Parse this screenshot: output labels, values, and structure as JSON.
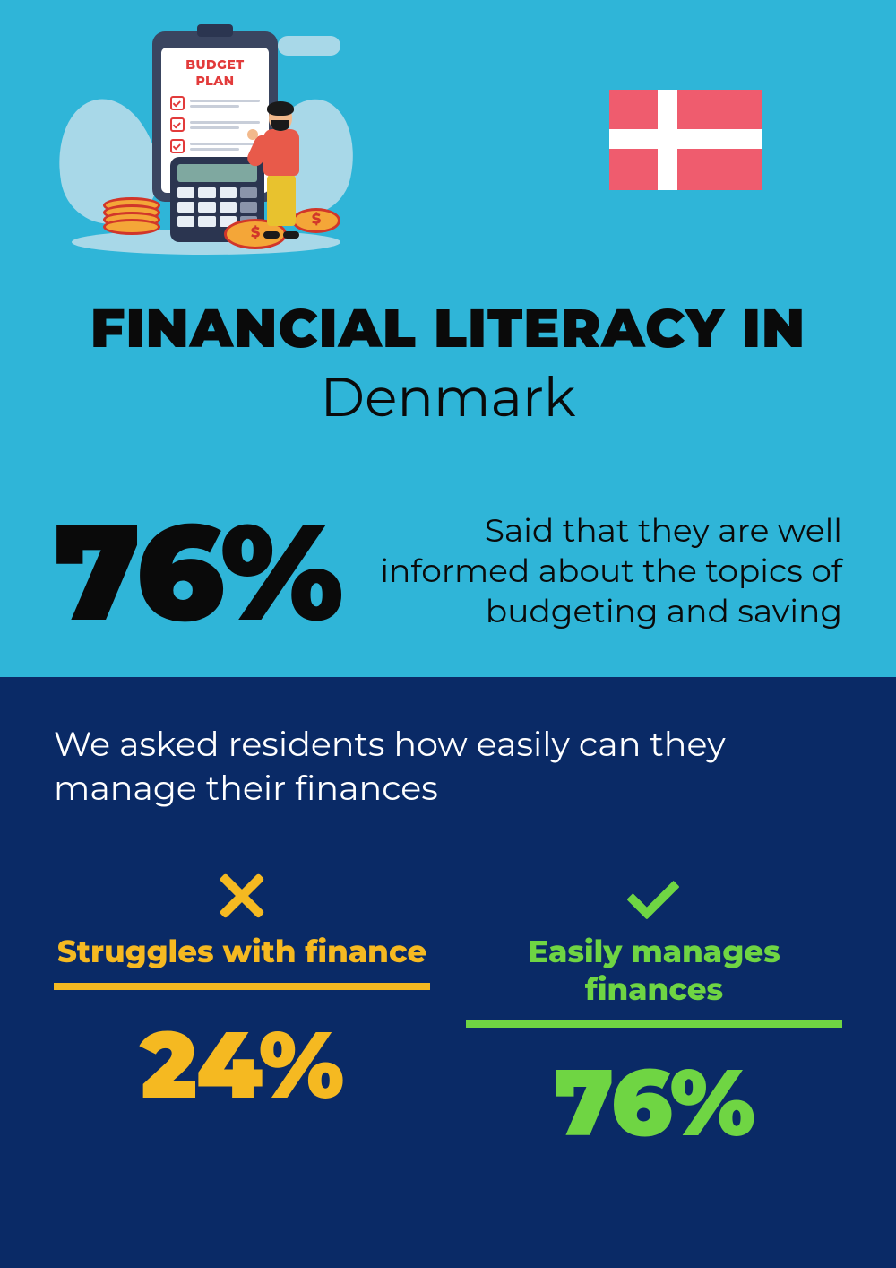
{
  "illustration": {
    "clipboard_label": "BUDGET PLAN"
  },
  "flag": {
    "country": "Denmark",
    "bg_color": "#ef5c6e",
    "cross_color": "#ffffff"
  },
  "title": {
    "line1": "FINANCIAL LITERACY IN",
    "line2": "Denmark",
    "line1_weight": 900,
    "line2_weight": 400,
    "font_size": 60,
    "color": "#0a0a0a"
  },
  "headline_stat": {
    "value": "76%",
    "value_font_size": 150,
    "value_weight": 900,
    "value_color": "#0a0a0a",
    "description": "Said that they are well informed about the topics of budgeting and saving",
    "description_font_size": 36,
    "description_align": "right"
  },
  "sections": {
    "top_bg": "#2fb5d8",
    "bottom_bg": "#0a2a66"
  },
  "question": {
    "text": "We asked residents how easily can they manage their finances",
    "font_size": 38,
    "color": "#ffffff"
  },
  "comparison": {
    "left": {
      "icon": "x",
      "label": "Struggles with finance",
      "value": "24%",
      "color": "#f5b921"
    },
    "right": {
      "icon": "check",
      "label": "Easily manages finances",
      "value": "76%",
      "color": "#6fd543"
    },
    "label_font_size": 34,
    "label_weight": 800,
    "value_font_size": 104,
    "value_weight": 900,
    "rule_height": 8
  },
  "palette": {
    "cyan": "#2fb5d8",
    "navy": "#0a2a66",
    "amber": "#f5b921",
    "green": "#6fd543",
    "flag_red": "#ef5c6e",
    "black": "#0a0a0a",
    "white": "#ffffff"
  }
}
